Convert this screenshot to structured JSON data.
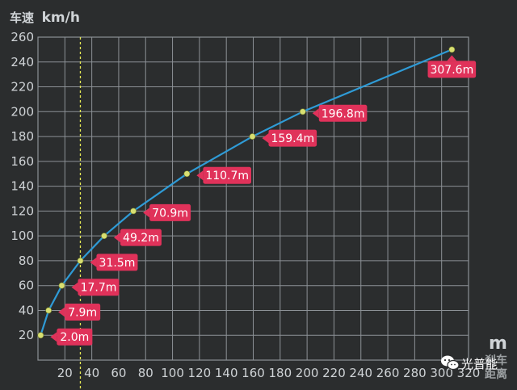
{
  "chart_data": {
    "type": "line",
    "title": "",
    "ylabel_cn": "车速",
    "ylabel_unit": "km/h",
    "xlabel_unit": "m",
    "xlabel_cn_line1": "刹车",
    "xlabel_cn_line2": "距离",
    "xlim": [
      0,
      320
    ],
    "ylim": [
      0,
      260
    ],
    "x_ticks": [
      20,
      40,
      60,
      80,
      100,
      120,
      140,
      160,
      180,
      200,
      220,
      240,
      260,
      280,
      300,
      320
    ],
    "x_tick_labels": [
      "20",
      "40",
      "60",
      "80",
      "100",
      "120",
      "140",
      "160",
      "180",
      "200",
      "220",
      "240",
      "260",
      "280",
      "300",
      "320"
    ],
    "y_ticks": [
      20,
      40,
      60,
      80,
      100,
      120,
      140,
      160,
      180,
      200,
      220,
      240,
      260
    ],
    "y_tick_labels": [
      "20",
      "40",
      "60",
      "80",
      "100",
      "120",
      "140",
      "160",
      "180",
      "200",
      "220",
      "240",
      "260"
    ],
    "grid": true,
    "reference_line_x": 31.5,
    "series": [
      {
        "x": [
          2.0,
          7.9,
          17.7,
          31.5,
          49.2,
          70.9,
          110.7,
          159.4,
          196.8,
          307.6
        ],
        "y": [
          20,
          40,
          60,
          80,
          100,
          120,
          150,
          180,
          200,
          250
        ],
        "labels": [
          "2.0m",
          "7.9m",
          "17.7m",
          "31.5m",
          "49.2m",
          "70.9m",
          "110.7m",
          "159.4m",
          "196.8m",
          "307.6m"
        ]
      }
    ],
    "colors": {
      "background": "#2b2d2e",
      "grid": "#8c9196",
      "line": "#2f9bd6",
      "point": "#d8df72",
      "label_bg": "#e0325a",
      "reference_line": "#e6ea55"
    }
  },
  "watermark": {
    "text": "光普能",
    "icon": "wechat-icon"
  }
}
